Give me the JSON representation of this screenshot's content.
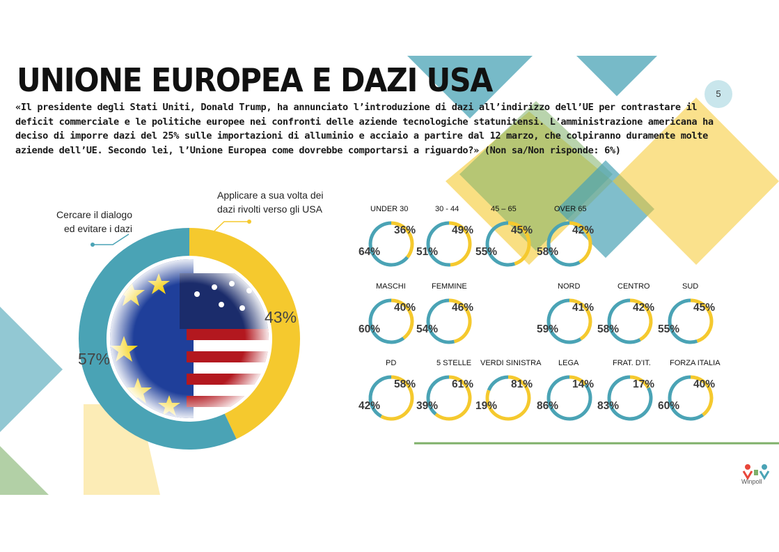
{
  "title": "UNIONE EUROPEA E DAZI USA",
  "page_number": "5",
  "question": "«Il presidente degli Stati Uniti, Donald Trump, ha annunciato l’introduzione di dazi all’indirizzo dell’UE per contrastare il deficit commerciale e le politiche europee nei confronti delle aziende tecnologiche statunitensi. L’amministrazione americana ha deciso di imporre dazi del 25% sulle importazioni di alluminio e acciaio a partire dal 12 marzo, che colpiranno duramente molte aziende dell’UE. Secondo lei, l’Unione Europea come dovrebbe comportarsi a riguardo?» (Non sa/Non risponde: 6%)",
  "colors": {
    "teal": "#4aa3b5",
    "yellow": "#f5c92e",
    "green": "#7fb06a"
  },
  "logo_text": "Winpoll",
  "chart_data": [
    {
      "type": "pie",
      "categories": [
        "Cercare il dialogo ed evitare i dazi",
        "Applicare a sua volta dei dazi rivolti verso gli USA"
      ],
      "values": [
        57,
        43
      ],
      "value_labels": [
        "57%",
        "43%"
      ],
      "callouts": {
        "left": [
          "Cercare il dialogo",
          "ed evitare i dazi"
        ],
        "right": [
          "Applicare a sua volta dei",
          "dazi rivolti verso gli USA"
        ]
      }
    },
    {
      "type": "pie",
      "group_type": "breakdown",
      "series_order": [
        "dialogo",
        "dazi"
      ],
      "segments": [
        {
          "label": "UNDER 30",
          "dazi": 36,
          "dialogo": 64
        },
        {
          "label": "30 - 44",
          "dazi": 49,
          "dialogo": 51
        },
        {
          "label": "45 – 65",
          "dazi": 45,
          "dialogo": 55
        },
        {
          "label": "OVER 65",
          "dazi": 42,
          "dialogo": 58
        },
        {
          "label": "MASCHI",
          "dazi": 40,
          "dialogo": 60
        },
        {
          "label": "FEMMINE",
          "dazi": 46,
          "dialogo": 54
        },
        {
          "label": "NORD",
          "dazi": 41,
          "dialogo": 59
        },
        {
          "label": "CENTRO",
          "dazi": 42,
          "dialogo": 58
        },
        {
          "label": "SUD",
          "dazi": 45,
          "dialogo": 55
        },
        {
          "label": "PD",
          "dazi": 58,
          "dialogo": 42
        },
        {
          "label": "5 STELLE",
          "dazi": 61,
          "dialogo": 39
        },
        {
          "label": "VERDI SINISTRA",
          "dazi": 81,
          "dialogo": 19
        },
        {
          "label": "LEGA",
          "dazi": 14,
          "dialogo": 86
        },
        {
          "label": "FRAT. D’IT.",
          "dazi": 17,
          "dialogo": 83
        },
        {
          "label": "FORZA ITALIA",
          "dazi": 40,
          "dialogo": 60
        }
      ]
    }
  ]
}
